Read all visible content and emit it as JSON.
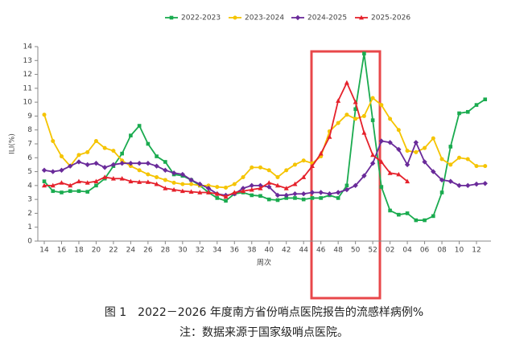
{
  "chart_data": {
    "type": "line",
    "y_label": "ILI(%)",
    "x_label": "周次",
    "caption": "图 1　2022－2026 年度南方省份哨点医院报告的流感样病例%",
    "note": "注：数据来源于国家级哨点医院。",
    "categories": [
      "14",
      null,
      "16",
      null,
      "18",
      null,
      "20",
      null,
      "22",
      null,
      "24",
      null,
      "26",
      null,
      "28",
      null,
      "30",
      null,
      "32",
      null,
      "34",
      null,
      "36",
      null,
      "38",
      null,
      "40",
      null,
      "42",
      null,
      "44",
      null,
      "46",
      null,
      "48",
      null,
      "50",
      null,
      "52",
      null,
      "02",
      null,
      "04",
      null,
      "06",
      null,
      "08",
      null,
      "10",
      null,
      "12",
      null
    ],
    "ylim": [
      0,
      14
    ],
    "yticks": [
      0,
      1,
      2,
      3,
      4,
      5,
      6,
      7,
      8,
      9,
      10,
      11,
      12,
      13,
      14
    ],
    "legend": "top",
    "series": [
      {
        "name": "2022-2023",
        "color": "#1aab4f",
        "marker": "square",
        "values": [
          4.3,
          3.6,
          3.5,
          3.6,
          3.6,
          3.55,
          4.0,
          4.5,
          5.4,
          6.3,
          7.6,
          8.3,
          7.0,
          6.1,
          5.7,
          4.8,
          4.7,
          4.4,
          4.0,
          3.5,
          3.1,
          2.9,
          3.4,
          3.5,
          3.3,
          3.25,
          3.0,
          2.95,
          3.1,
          3.1,
          3.0,
          3.1,
          3.1,
          3.3,
          3.1,
          4.0,
          9.5,
          13.5,
          8.7,
          3.9,
          2.2,
          1.9,
          2.0,
          1.5,
          1.5,
          1.8,
          3.5,
          6.8,
          9.2,
          9.3,
          9.8,
          10.2
        ]
      },
      {
        "name": "2023-2024",
        "color": "#f5c400",
        "marker": "circle",
        "values": [
          9.1,
          7.2,
          6.1,
          5.4,
          6.2,
          6.4,
          7.2,
          6.7,
          6.5,
          5.8,
          5.4,
          5.1,
          4.8,
          4.6,
          4.4,
          4.2,
          4.1,
          4.1,
          4.0,
          4.0,
          3.9,
          3.85,
          4.1,
          4.6,
          5.3,
          5.3,
          5.1,
          4.6,
          5.1,
          5.5,
          5.8,
          5.6,
          6.1,
          7.9,
          8.5,
          9.1,
          8.8,
          9.0,
          10.3,
          9.8,
          8.8,
          8.0,
          6.5,
          6.4,
          6.7,
          7.4,
          5.9,
          5.5,
          6.0,
          5.9,
          5.4,
          5.4
        ]
      },
      {
        "name": "2024-2025",
        "color": "#6a2b9a",
        "marker": "diamond",
        "values": [
          5.1,
          5.0,
          5.1,
          5.4,
          5.7,
          5.5,
          5.6,
          5.3,
          5.5,
          5.6,
          5.6,
          5.6,
          5.6,
          5.4,
          5.1,
          4.9,
          4.8,
          4.4,
          4.1,
          3.8,
          3.4,
          3.3,
          3.4,
          3.8,
          4.0,
          4.0,
          3.9,
          3.3,
          3.3,
          3.4,
          3.4,
          3.5,
          3.5,
          3.4,
          3.5,
          3.7,
          4.0,
          4.7,
          5.6,
          7.2,
          7.1,
          6.6,
          5.5,
          7.1,
          5.7,
          5.0,
          4.4,
          4.3,
          4.0,
          4.0,
          4.1,
          4.15
        ]
      },
      {
        "name": "2025-2026",
        "color": "#e5212b",
        "marker": "triangle",
        "values": [
          4.0,
          4.0,
          4.2,
          4.0,
          4.3,
          4.2,
          4.3,
          4.6,
          4.5,
          4.5,
          4.3,
          4.25,
          4.25,
          4.1,
          3.8,
          3.7,
          3.6,
          3.55,
          3.5,
          3.5,
          3.4,
          3.2,
          3.5,
          3.6,
          3.7,
          3.8,
          4.2,
          4.0,
          3.8,
          4.1,
          4.6,
          5.4,
          6.3,
          7.5,
          10.1,
          11.4,
          10.0,
          7.8,
          6.2,
          5.7,
          4.9,
          4.8,
          4.3,
          null,
          null,
          null,
          null,
          null,
          null,
          null,
          null,
          null
        ]
      }
    ]
  }
}
